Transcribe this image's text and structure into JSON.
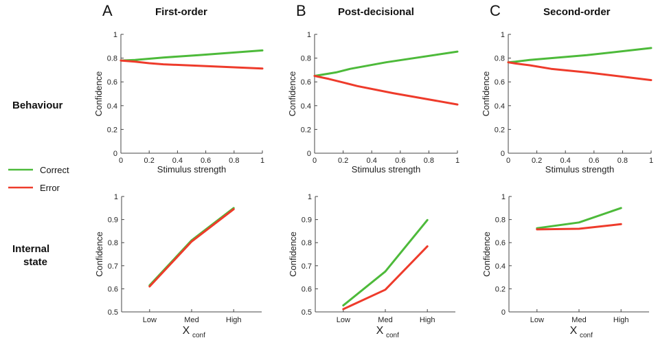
{
  "legend": {
    "entries": [
      {
        "label": "Correct",
        "color": "#4dba3a"
      },
      {
        "label": "Error",
        "color": "#ee3b2b"
      }
    ]
  },
  "rows": {
    "behaviour": "Behaviour",
    "internal_line1": "Internal",
    "internal_line2": "state"
  },
  "panels": [
    {
      "letter": "A",
      "title": "First-order"
    },
    {
      "letter": "B",
      "title": "Post-decisional"
    },
    {
      "letter": "C",
      "title": "Second-order"
    }
  ],
  "chart_data": [
    {
      "id": "A-behaviour",
      "type": "line",
      "xlabel": "Stimulus strength",
      "ylabel": "Confidence",
      "xlim": [
        0,
        1
      ],
      "ylim": [
        0,
        1
      ],
      "xticks": [
        "0",
        "0.2",
        "0.4",
        "0.6",
        "0.8",
        "1"
      ],
      "yticks": [
        "0",
        "0.2",
        "0.4",
        "0.6",
        "0.8",
        "1"
      ],
      "series": [
        {
          "name": "Correct",
          "color": "#4dba3a",
          "x": [
            0,
            0.1,
            0.2,
            0.3,
            0.55,
            1
          ],
          "y": [
            0.78,
            0.785,
            0.795,
            0.805,
            0.825,
            0.865
          ]
        },
        {
          "name": "Error",
          "color": "#ee3b2b",
          "x": [
            0,
            0.1,
            0.2,
            0.3,
            0.55,
            1
          ],
          "y": [
            0.78,
            0.77,
            0.757,
            0.748,
            0.735,
            0.713
          ]
        }
      ]
    },
    {
      "id": "B-behaviour",
      "type": "line",
      "xlabel": "Stimulus strength",
      "ylabel": "Confidence",
      "xlim": [
        0,
        1
      ],
      "ylim": [
        0,
        1
      ],
      "xticks": [
        "0",
        "0.2",
        "0.4",
        "0.6",
        "0.8",
        "1"
      ],
      "yticks": [
        "0",
        "0.2",
        "0.4",
        "0.6",
        "0.8",
        "1"
      ],
      "series": [
        {
          "name": "Correct",
          "color": "#4dba3a",
          "x": [
            0,
            0.1,
            0.15,
            0.25,
            0.5,
            1
          ],
          "y": [
            0.65,
            0.67,
            0.68,
            0.71,
            0.765,
            0.855
          ]
        },
        {
          "name": "Error",
          "color": "#ee3b2b",
          "x": [
            0,
            0.1,
            0.2,
            0.3,
            0.55,
            1
          ],
          "y": [
            0.65,
            0.625,
            0.595,
            0.565,
            0.505,
            0.41
          ]
        }
      ]
    },
    {
      "id": "C-behaviour",
      "type": "line",
      "xlabel": "Stimulus strength",
      "ylabel": "Confidence",
      "xlim": [
        0,
        1
      ],
      "ylim": [
        0,
        1
      ],
      "xticks": [
        "0",
        "0.2",
        "0.4",
        "0.6",
        "0.8",
        "1"
      ],
      "yticks": [
        "0",
        "0.2",
        "0.4",
        "0.6",
        "0.8",
        "1"
      ],
      "series": [
        {
          "name": "Correct",
          "color": "#4dba3a",
          "x": [
            0,
            0.05,
            0.15,
            0.3,
            0.55,
            1
          ],
          "y": [
            0.765,
            0.77,
            0.785,
            0.8,
            0.825,
            0.885
          ]
        },
        {
          "name": "Error",
          "color": "#ee3b2b",
          "x": [
            0,
            0.05,
            0.15,
            0.3,
            0.55,
            1
          ],
          "y": [
            0.765,
            0.755,
            0.74,
            0.71,
            0.68,
            0.615
          ]
        }
      ]
    },
    {
      "id": "A-internal",
      "type": "line",
      "xlabel_main": "X",
      "xlabel_sub": "conf",
      "ylabel": "Confidence",
      "categories": [
        "Low",
        "Med",
        "High"
      ],
      "ylim": [
        0.5,
        1
      ],
      "yticks": [
        "0.5",
        "0.6",
        "0.7",
        "0.8",
        "0.9",
        "1"
      ],
      "series": [
        {
          "name": "Correct",
          "color": "#4dba3a",
          "values": [
            0.615,
            0.81,
            0.95
          ]
        },
        {
          "name": "Error",
          "color": "#ee3b2b",
          "values": [
            0.61,
            0.805,
            0.945
          ]
        }
      ]
    },
    {
      "id": "B-internal",
      "type": "line",
      "xlabel_main": "X",
      "xlabel_sub": "conf",
      "ylabel": "Confidence",
      "categories": [
        "Low",
        "Med",
        "High"
      ],
      "ylim": [
        0.5,
        1
      ],
      "yticks": [
        "0.5",
        "0.6",
        "0.7",
        "0.8",
        "0.9",
        "1"
      ],
      "series": [
        {
          "name": "Correct",
          "color": "#4dba3a",
          "values": [
            0.528,
            0.675,
            0.898
          ]
        },
        {
          "name": "Error",
          "color": "#ee3b2b",
          "values": [
            0.512,
            0.596,
            0.784
          ]
        }
      ]
    },
    {
      "id": "C-internal",
      "type": "line",
      "xlabel_main": "X",
      "xlabel_sub": "conf",
      "ylabel": "Confidence",
      "categories": [
        "Low",
        "Med",
        "High"
      ],
      "ylim": [
        0,
        1
      ],
      "yticks": [
        "0",
        "0.2",
        "0.4",
        "0.6",
        "0.8",
        "1"
      ],
      "series": [
        {
          "name": "Correct",
          "color": "#4dba3a",
          "values": [
            0.725,
            0.775,
            0.9
          ]
        },
        {
          "name": "Error",
          "color": "#ee3b2b",
          "values": [
            0.715,
            0.72,
            0.76
          ]
        }
      ]
    }
  ]
}
